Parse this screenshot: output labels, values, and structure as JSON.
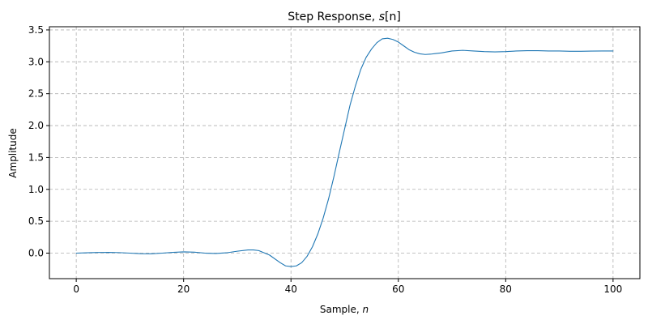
{
  "chart_data": {
    "type": "line",
    "title": "Step Response, ",
    "title_symbol": "s",
    "title_suffix": "[n]",
    "xlabel": "Sample, ",
    "xlabel_symbol": "n",
    "ylabel": "Amplitude",
    "xlim": [
      -5,
      105
    ],
    "ylim": [
      -0.4,
      3.55
    ],
    "xticks": [
      0,
      20,
      40,
      60,
      80,
      100
    ],
    "yticks": [
      0.0,
      0.5,
      1.0,
      1.5,
      2.0,
      2.5,
      3.0,
      3.5
    ],
    "xtick_labels": [
      "0",
      "20",
      "40",
      "60",
      "80",
      "100"
    ],
    "ytick_labels": [
      "0.0",
      "0.5",
      "1.0",
      "1.5",
      "2.0",
      "2.5",
      "3.0",
      "3.5"
    ],
    "grid": true,
    "grid_style": "dashed",
    "line_color": "#1f77b4",
    "series": [
      {
        "x": [
          0,
          2,
          4,
          6,
          8,
          10,
          12,
          14,
          16,
          18,
          20,
          22,
          24,
          26,
          28,
          30,
          32,
          33,
          34,
          36,
          38,
          39,
          40,
          41,
          42,
          43,
          44,
          45,
          46,
          47,
          48,
          49,
          50,
          51,
          52,
          53,
          54,
          55,
          56,
          57,
          58,
          59,
          60,
          61,
          62,
          63,
          64,
          65,
          66,
          67,
          68,
          70,
          72,
          74,
          76,
          78,
          80,
          82,
          84,
          86,
          88,
          90,
          92,
          94,
          96,
          98,
          100
        ],
        "y": [
          0.0,
          0.005,
          0.01,
          0.012,
          0.008,
          0.0,
          -0.008,
          -0.01,
          0.0,
          0.012,
          0.02,
          0.015,
          0.0,
          -0.005,
          0.005,
          0.03,
          0.05,
          0.05,
          0.04,
          -0.03,
          -0.15,
          -0.2,
          -0.21,
          -0.2,
          -0.15,
          -0.05,
          0.1,
          0.3,
          0.55,
          0.85,
          1.2,
          1.58,
          1.95,
          2.32,
          2.62,
          2.88,
          3.07,
          3.2,
          3.3,
          3.36,
          3.37,
          3.35,
          3.31,
          3.25,
          3.19,
          3.15,
          3.125,
          3.115,
          3.12,
          3.13,
          3.14,
          3.17,
          3.18,
          3.17,
          3.16,
          3.155,
          3.16,
          3.17,
          3.175,
          3.175,
          3.17,
          3.17,
          3.165,
          3.165,
          3.168,
          3.17,
          3.17
        ]
      }
    ]
  }
}
